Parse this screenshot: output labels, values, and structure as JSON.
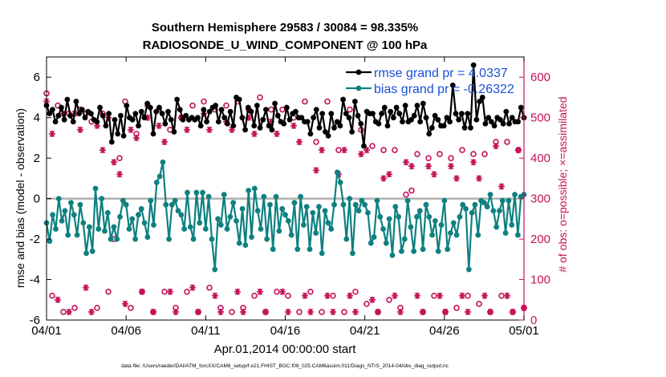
{
  "chart_data": {
    "type": "line",
    "title_line1": "Southern Hemisphere 29583 / 30084 = 98.335%",
    "title_line2": "RADIOSONDE_U_WIND_COMPONENT @ 100 hPa",
    "xlabel": "Apr.01,2014 00:00:00 start",
    "ylabel_left": "rmse and bias (model - observation)",
    "ylabel_right": "# of obs: o=possible; ×=assimilated",
    "footer": "data file: /Users/raeder/DAI/ATM_forcXX/CAM6_setup/f.e21.FHIST_BGC.f09_025.CAM6assim.011/Diags_NTrS_2014-04/obs_diag_output.nc",
    "x_ticks": [
      "04/01",
      "04/06",
      "04/11",
      "04/16",
      "04/21",
      "04/26",
      "05/01"
    ],
    "x_tick_days": [
      0,
      5,
      10,
      15,
      20,
      25,
      30
    ],
    "x_range_days": [
      0,
      30
    ],
    "y_left_range": [
      -6,
      7
    ],
    "y_left_ticks": [
      "-6",
      "-4",
      "-2",
      "0",
      "2",
      "4",
      "6"
    ],
    "y_right_range": [
      0,
      650
    ],
    "y_right_ticks": [
      "0",
      "100",
      "200",
      "300",
      "400",
      "500",
      "600"
    ],
    "zero_line": 0,
    "colors": {
      "rmse": "#000000",
      "bias": "#0f8080",
      "obs": "#c4125a",
      "zero_line": "#b0b0b0",
      "legend_text": "#1a4fd6"
    },
    "legend": {
      "position": "top-right",
      "entries": [
        "rmse grand pr = 4.0337",
        "bias grand pr = -0.26322"
      ]
    },
    "x_step_days": 0.25,
    "series": [
      {
        "name": "rmse",
        "axis": "left",
        "values": [
          4.6,
          4.2,
          4.4,
          3.8,
          4.1,
          4.5,
          3.9,
          4.9,
          4.1,
          3.8,
          4.8,
          4.2,
          4.4,
          4.0,
          4.3,
          4.2,
          3.9,
          3.8,
          4.5,
          4.1,
          3.6,
          4.2,
          2.8,
          3.9,
          3.2,
          4.1,
          3.1,
          4.6,
          4.0,
          3.9,
          4.2,
          3.6,
          4.3,
          4.0,
          4.7,
          4.5,
          3.2,
          4.3,
          4.5,
          4.2,
          3.7,
          4.3,
          3.9,
          3.3,
          4.9,
          4.4,
          3.9,
          4.1,
          3.9,
          4.0,
          3.9,
          4.0,
          3.6,
          4.4,
          3.8,
          4.3,
          4.5,
          4.6,
          3.8,
          4.4,
          4.0,
          3.7,
          4.3,
          3.6,
          5.0,
          4.9,
          4.0,
          3.4,
          4.5,
          4.3,
          3.6,
          4.6,
          3.5,
          3.9,
          4.4,
          3.6,
          3.4,
          4.7,
          4.1,
          3.8,
          3.7,
          4.5,
          3.9,
          4.2,
          4.3,
          4.0,
          4.0,
          3.8,
          3.8,
          3.2,
          4.0,
          4.4,
          3.5,
          4.2,
          3.3,
          3.1,
          4.2,
          3.5,
          3.8,
          3.6,
          4.9,
          4.2,
          4.0,
          3.3,
          4.8,
          4.1,
          3.7,
          2.6,
          4.3,
          4.2,
          4.2,
          3.8,
          3.7,
          4.2,
          4.5,
          3.6,
          4.3,
          4.0,
          4.5,
          4.2,
          3.8,
          4.6,
          3.8,
          3.9,
          4.1,
          4.6,
          3.8,
          4.7,
          4.0,
          3.2,
          3.5,
          4.1,
          3.9,
          3.6,
          3.6,
          4.0,
          3.8,
          5.6,
          4.2,
          3.9,
          4.2,
          3.5,
          4.2,
          3.5,
          6.6,
          3.9,
          4.8,
          5.0,
          3.7,
          4.0,
          3.8,
          3.6,
          4.0,
          3.9,
          3.7,
          4.3,
          3.7,
          4.0,
          3.8,
          3.8,
          4.5,
          4.0
        ],
        "marker": "circle"
      },
      {
        "name": "bias",
        "axis": "left",
        "values": [
          -1.2,
          -2.1,
          -0.8,
          -1.5,
          0.0,
          -1.1,
          -0.6,
          -1.8,
          -0.2,
          -0.8,
          -1.8,
          -0.3,
          -1.2,
          -2.7,
          -1.4,
          -2.6,
          0.5,
          -1.5,
          0.0,
          -1.6,
          -0.7,
          -2.0,
          -1.4,
          -2.0,
          -0.9,
          -0.1,
          -0.3,
          -1.5,
          -1.0,
          -2.0,
          -0.8,
          -0.5,
          -1.2,
          -1.9,
          -0.1,
          -1.3,
          0.8,
          1.1,
          1.8,
          -0.3,
          -2.0,
          -0.3,
          -0.1,
          -0.6,
          -0.8,
          -1.5,
          0.3,
          -1.4,
          -2.0,
          0.3,
          -1.2,
          0.3,
          -1.5,
          0.1,
          -2.0,
          -3.5,
          -1.0,
          -1.3,
          0.2,
          -1.5,
          -0.9,
          -0.2,
          -1.1,
          -2.2,
          -0.5,
          -2.3,
          0.4,
          -1.9,
          0.5,
          -0.6,
          -1.5,
          0.1,
          -2.0,
          -0.3,
          -2.5,
          0.1,
          -1.6,
          -0.5,
          -0.8,
          -1.1,
          -1.8,
          -0.2,
          -2.5,
          0.1,
          -1.3,
          -0.4,
          -2.5,
          -0.7,
          -1.7,
          -0.4,
          -2.7,
          -0.6,
          -1.2,
          -1.5,
          -0.3,
          1.3,
          0.8,
          -0.3,
          -2.0,
          0.0,
          -2.7,
          -0.3,
          -0.6,
          -0.1,
          -0.3,
          -0.7,
          -2.2,
          -1.9,
          -0.1,
          -0.9,
          -1.5,
          -2.2,
          -1.0,
          -2.8,
          -0.4,
          -0.9,
          -2.6,
          -2.0,
          -0.1,
          -1.4,
          -2.6,
          -0.9,
          -0.6,
          -2.5,
          -0.3,
          -0.9,
          -1.8,
          -1.1,
          -2.6,
          -1.3,
          -0.1,
          -2.5,
          -1.7,
          -1.2,
          -1.8,
          -0.9,
          -0.3,
          -0.5,
          -3.5,
          -0.7,
          -0.3,
          -1.8,
          -0.1,
          -0.2,
          -0.4,
          0.2,
          -0.6,
          -1.4,
          -0.6,
          -0.1,
          -1.7,
          -0.1,
          -1.3,
          0.2,
          -1.8,
          0.1,
          0.2
        ],
        "marker": "circle"
      },
      {
        "name": "obs_possible",
        "axis": "right",
        "values": [
          560,
          60,
          530,
          20,
          510,
          30,
          520,
          510,
          490,
          30,
          510,
          70,
          200,
          400,
          540,
          30,
          460,
          70,
          530,
          20,
          520,
          70,
          470,
          30,
          500,
          70,
          530,
          20,
          540,
          80,
          520,
          30,
          530,
          20,
          540,
          30,
          520,
          60,
          550,
          20,
          520,
          70,
          520,
          60,
          500,
          20,
          540,
          70,
          440,
          20,
          540,
          60,
          420,
          20,
          520,
          70,
          470,
          40,
          430,
          20,
          420,
          50,
          420,
          30,
          310,
          320,
          410,
          20,
          400,
          60,
          410,
          20,
          400,
          30,
          420,
          60,
          410,
          40,
          410,
          20,
          440,
          60,
          440,
          20,
          420,
          30
        ],
        "marker": "circle-open"
      },
      {
        "name": "obs_assimilated",
        "axis": "right",
        "values": [
          540,
          460,
          50,
          510,
          20,
          510,
          470,
          80,
          20,
          480,
          420,
          500,
          390,
          360,
          40,
          470,
          450,
          70,
          500,
          20,
          480,
          440,
          70,
          20,
          500,
          470,
          80,
          20,
          510,
          470,
          60,
          20,
          490,
          470,
          70,
          20,
          500,
          460,
          70,
          20,
          490,
          460,
          70,
          20,
          480,
          440,
          60,
          20,
          370,
          420,
          60,
          20,
          360,
          420,
          60,
          20,
          410,
          420,
          50,
          20,
          350,
          360,
          60,
          20,
          390,
          380,
          60,
          20,
          380,
          360,
          60,
          20,
          380,
          350,
          60,
          20,
          390,
          350,
          60,
          20,
          430,
          330,
          60,
          20,
          420,
          30
        ],
        "marker": "asterisk"
      }
    ]
  }
}
